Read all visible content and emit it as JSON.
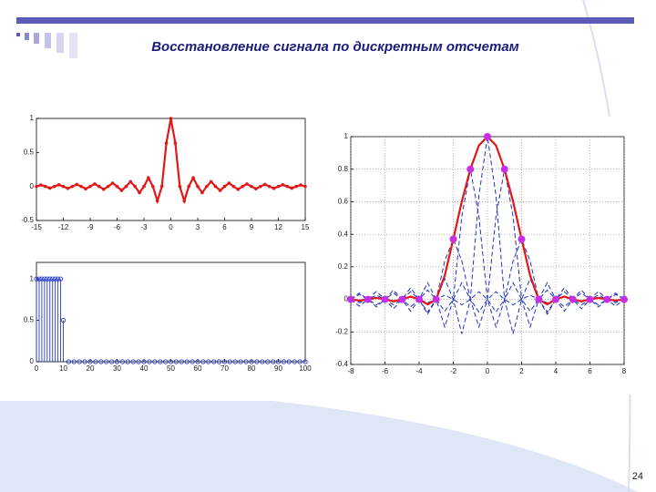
{
  "title": "Восстановление сигнала по дискретным отсчетам",
  "page_number": "24",
  "chart_data": [
    {
      "type": "line",
      "x": [
        -15,
        -14.5,
        -14,
        -13.5,
        -13,
        -12.5,
        -12,
        -11.5,
        -11,
        -10.5,
        -10,
        -9.5,
        -9,
        -8.5,
        -8,
        -7.5,
        -7,
        -6.5,
        -6,
        -5.5,
        -5,
        -4.5,
        -4,
        -3.5,
        -3,
        -2.5,
        -2,
        -1.5,
        -1,
        -0.5,
        0,
        0.5,
        1,
        1.5,
        2,
        2.5,
        3,
        3.5,
        4,
        4.5,
        5,
        5.5,
        6,
        6.5,
        7,
        7.5,
        8,
        8.5,
        9,
        9.5,
        10,
        10.5,
        11,
        11.5,
        12,
        12.5,
        13,
        13.5,
        14,
        14.5,
        15
      ],
      "series": [
        {
          "color": "#e01818",
          "markers": true,
          "values": [
            0,
            0.022,
            0,
            -0.024,
            0,
            0.025,
            0,
            -0.028,
            0,
            0.03,
            0,
            -0.034,
            0,
            0.037,
            0,
            -0.042,
            0,
            0.049,
            0,
            -0.058,
            0,
            0.071,
            0,
            -0.091,
            0,
            0.127,
            0,
            -0.212,
            0,
            0.637,
            1,
            0.637,
            0,
            -0.212,
            0,
            0.127,
            0,
            -0.091,
            0,
            0.071,
            0,
            -0.058,
            0,
            0.049,
            0,
            -0.042,
            0,
            0.037,
            0,
            -0.034,
            0,
            0.03,
            0,
            -0.028,
            0,
            0.025,
            0,
            -0.024,
            0,
            0.022,
            0
          ]
        }
      ],
      "xlim": [
        -15,
        15
      ],
      "xticks": [
        -15,
        -12,
        -9,
        -6,
        -3,
        0,
        3,
        6,
        9,
        12,
        15
      ],
      "ylim": [
        -0.5,
        1
      ],
      "yticks": [
        -0.5,
        0,
        0.5,
        1
      ],
      "grid": false
    },
    {
      "type": "stem",
      "x": [
        0,
        1,
        2,
        3,
        4,
        5,
        6,
        7,
        8,
        9,
        10,
        12,
        14,
        16,
        18,
        20,
        22,
        24,
        26,
        28,
        30,
        32,
        34,
        36,
        38,
        40,
        42,
        44,
        46,
        48,
        50,
        52,
        54,
        56,
        58,
        60,
        62,
        64,
        66,
        68,
        70,
        72,
        74,
        76,
        78,
        80,
        82,
        84,
        86,
        88,
        90,
        92,
        94,
        96,
        98,
        100
      ],
      "series": [
        {
          "color": "#2a3cc8",
          "values": [
            1,
            1,
            1,
            1,
            1,
            1,
            1,
            1,
            1,
            1,
            0.5,
            0,
            0,
            0,
            0,
            0,
            0,
            0,
            0,
            0,
            0,
            0,
            0,
            0,
            0,
            0,
            0,
            0,
            0,
            0,
            0,
            0,
            0,
            0,
            0,
            0,
            0,
            0,
            0,
            0,
            0,
            0,
            0,
            0,
            0,
            0,
            0,
            0,
            0,
            0,
            0,
            0,
            0,
            0,
            0,
            0
          ]
        }
      ],
      "xlim": [
        0,
        100
      ],
      "xticks": [
        0,
        10,
        20,
        30,
        40,
        50,
        60,
        70,
        80,
        90,
        100
      ],
      "ylim": [
        0,
        1.2
      ],
      "yticks": [
        0,
        0.5,
        1
      ],
      "grid": false
    },
    {
      "type": "line",
      "x": [
        -8,
        -7.5,
        -7,
        -6.5,
        -6,
        -5.5,
        -5,
        -4.5,
        -4,
        -3.5,
        -3,
        -2.5,
        -2,
        -1.5,
        -1,
        -0.5,
        0,
        0.5,
        1,
        1.5,
        2,
        2.5,
        3,
        3.5,
        4,
        4.5,
        5,
        5.5,
        6,
        6.5,
        7,
        7.5,
        8
      ],
      "series": [
        {
          "color": "#2030c0",
          "dash": true,
          "values": [
            0,
            -0.042,
            0,
            0.049,
            0,
            -0.058,
            0,
            0.071,
            0,
            -0.091,
            0,
            0.127,
            0,
            -0.212,
            0,
            0.637,
            1,
            0.637,
            0,
            -0.212,
            0,
            0.127,
            0,
            -0.091,
            0,
            0.071,
            0,
            -0.058,
            0,
            0.049,
            0,
            -0.042,
            0
          ]
        },
        {
          "color": "#2030c0",
          "dash": true,
          "values": [
            0,
            0.03,
            0,
            -0.034,
            0,
            0.039,
            0,
            -0.046,
            0,
            0.057,
            0,
            -0.073,
            0,
            0.102,
            0,
            -0.17,
            0,
            0.51,
            0.8,
            0.51,
            0,
            -0.17,
            0,
            0.102,
            0,
            -0.073,
            0,
            0.057,
            0,
            -0.046,
            0,
            0.039,
            0
          ]
        },
        {
          "color": "#2030c0",
          "dash": true,
          "values": [
            0,
            0.039,
            0,
            -0.046,
            0,
            0.057,
            0,
            -0.073,
            0,
            0.102,
            0,
            -0.17,
            0,
            0.51,
            0.8,
            0.51,
            0,
            -0.17,
            0,
            0.102,
            0,
            -0.073,
            0,
            0.057,
            0,
            -0.046,
            0,
            0.039,
            0,
            -0.034,
            0,
            0.03,
            0
          ]
        },
        {
          "color": "#2030c0",
          "dash": true,
          "values": [
            0,
            -0.013,
            0,
            0.014,
            0,
            -0.016,
            0,
            0.018,
            0,
            -0.021,
            0,
            0.026,
            0,
            -0.034,
            0,
            0.047,
            0,
            -0.078,
            0,
            0.236,
            0.37,
            0.236,
            0,
            -0.078,
            0,
            0.047,
            0,
            -0.034,
            0,
            0.026,
            0,
            -0.021,
            0
          ]
        },
        {
          "color": "#2030c0",
          "dash": true,
          "values": [
            0,
            -0.021,
            0,
            0.026,
            0,
            -0.034,
            0,
            0.047,
            0,
            -0.078,
            0,
            0.236,
            0.37,
            0.236,
            0,
            -0.078,
            0,
            0.047,
            0,
            -0.034,
            0,
            0.026,
            0,
            -0.021,
            0,
            0.018,
            0,
            -0.016,
            0,
            0.014,
            0,
            -0.013,
            0
          ]
        },
        {
          "color": "#e01818",
          "values": [
            0,
            -0.007,
            0,
            0.009,
            0,
            -0.012,
            0,
            0.017,
            0,
            -0.031,
            0,
            0.146,
            0.37,
            0.602,
            0.8,
            0.946,
            1,
            0.946,
            0.8,
            0.602,
            0.37,
            0.146,
            0,
            -0.031,
            0,
            0.017,
            0,
            -0.012,
            0,
            0.009,
            0,
            -0.007,
            0
          ]
        },
        {
          "color": "#c82ee6",
          "line": false,
          "markers": true,
          "x": [
            -8,
            -7,
            -6,
            -5,
            -4,
            -3,
            -2,
            -1,
            0,
            1,
            2,
            3,
            4,
            5,
            6,
            7,
            8
          ],
          "values": [
            0,
            0,
            0,
            0,
            0,
            0,
            0.37,
            0.8,
            1,
            0.8,
            0.37,
            0,
            0,
            0,
            0,
            0,
            0
          ]
        }
      ],
      "xlim": [
        -8,
        8
      ],
      "xticks": [
        -8,
        -6,
        -4,
        -2,
        0,
        2,
        4,
        6,
        8
      ],
      "ylim": [
        -0.4,
        1
      ],
      "yticks": [
        -0.4,
        -0.2,
        0,
        0.2,
        0.4,
        0.6,
        0.8,
        1
      ],
      "grid": true
    }
  ]
}
